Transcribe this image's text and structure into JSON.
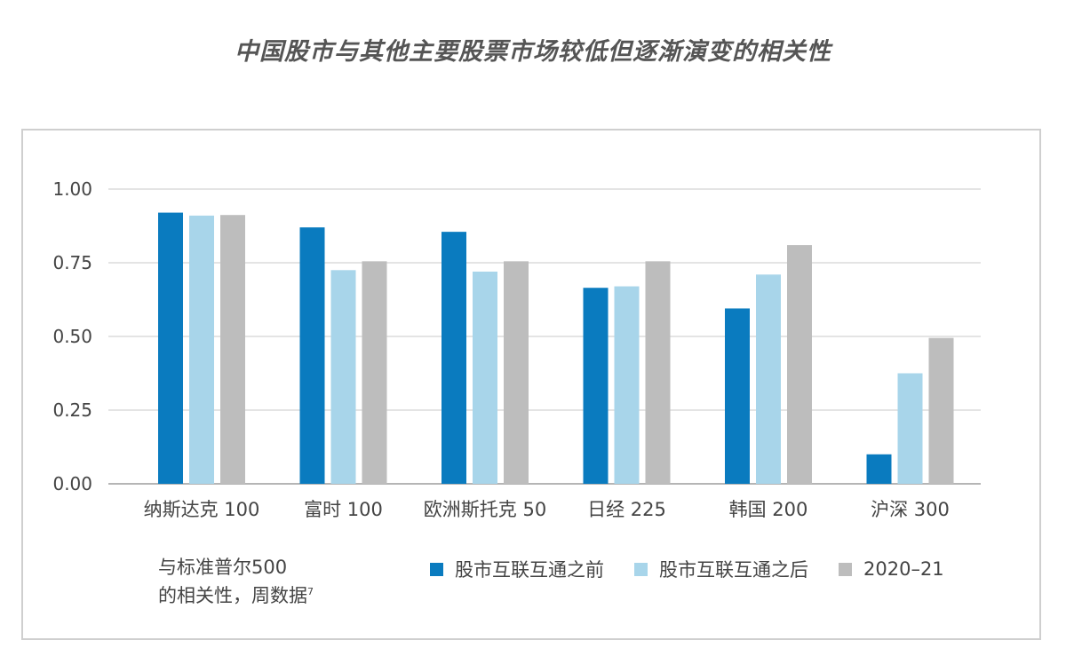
{
  "chart_data": {
    "type": "bar",
    "title": "中国股市与其他主要股票市场较低但逐渐演变的相关性",
    "ylabel_line1": "与标准普尔500",
    "ylabel_line2": "的相关性，周数据",
    "ylabel_footnote": "7",
    "categories": [
      "纳斯达克 100",
      "富时 100",
      "欧洲斯托克 50",
      "日经 225",
      "韩国 200",
      "沪深 300"
    ],
    "series": [
      {
        "name": "股市互联互通之前",
        "color": "#0a7bbf",
        "values": [
          0.92,
          0.87,
          0.855,
          0.665,
          0.595,
          0.1
        ]
      },
      {
        "name": "股市互联互通之后",
        "color": "#a8d5ea",
        "values": [
          0.91,
          0.725,
          0.72,
          0.67,
          0.71,
          0.375
        ]
      },
      {
        "name": "2020–21",
        "color": "#bdbdbd",
        "values": [
          0.912,
          0.755,
          0.755,
          0.755,
          0.81,
          0.495
        ]
      }
    ],
    "yticks": [
      "1.00",
      "0.75",
      "0.50",
      "0.25",
      "0.00"
    ],
    "ylim": [
      0,
      1.0
    ],
    "grid": true,
    "legend_position": "bottom"
  }
}
